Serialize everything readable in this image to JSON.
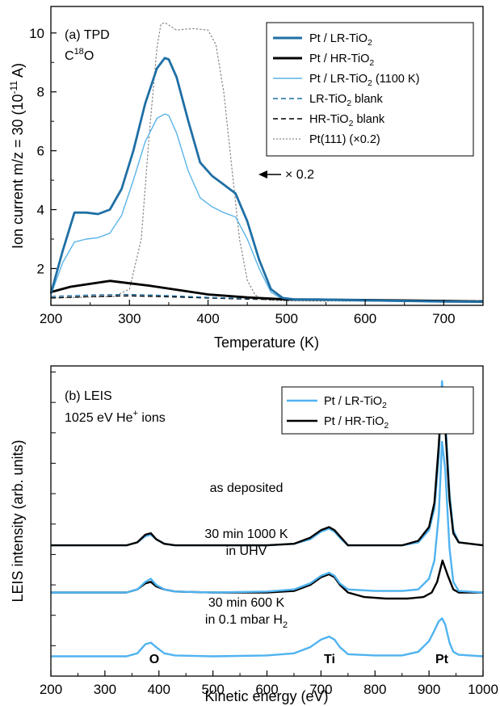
{
  "chart_data": [
    {
      "type": "line",
      "panel_label": "(a) TPD",
      "species": "C18O",
      "xlabel": "Temperature (K)",
      "ylabel": "Ion current m/z = 30 (10-11 A)",
      "xlim": [
        200,
        750
      ],
      "ylim": [
        0.75,
        10.9
      ],
      "x_ticks": [
        200,
        300,
        400,
        500,
        600,
        700
      ],
      "y_ticks": [
        2,
        4,
        6,
        8,
        10
      ],
      "legend_position": "top-right",
      "annotation": "× 0.2",
      "series": [
        {
          "name": "Pt / LR-TiO2",
          "color": "#1f6fa5",
          "style": "solid-thick",
          "x": [
            200,
            215,
            230,
            245,
            260,
            275,
            290,
            305,
            320,
            335,
            345,
            350,
            360,
            375,
            390,
            405,
            420,
            435,
            450,
            465,
            480,
            495,
            510,
            540,
            600,
            650,
            700,
            750
          ],
          "y": [
            1.15,
            2.6,
            3.9,
            3.9,
            3.85,
            4.0,
            4.7,
            6.0,
            7.6,
            8.8,
            9.15,
            9.1,
            8.5,
            7.0,
            5.6,
            5.15,
            4.85,
            4.55,
            3.6,
            2.3,
            1.3,
            1.0,
            0.95,
            0.95,
            0.92,
            0.9,
            0.88,
            0.87
          ]
        },
        {
          "name": "Pt / HR-TiO2",
          "color": "#000000",
          "style": "solid-thick",
          "x": [
            200,
            225,
            250,
            275,
            300,
            325,
            350,
            375,
            400,
            450,
            500,
            600,
            700,
            750
          ],
          "y": [
            1.2,
            1.38,
            1.48,
            1.58,
            1.5,
            1.42,
            1.32,
            1.22,
            1.12,
            1.02,
            0.95,
            0.93,
            0.9,
            0.88
          ]
        },
        {
          "name": "Pt / LR-TiO2 (1100 K)",
          "color": "#5ab4e8",
          "style": "solid",
          "x": [
            200,
            215,
            230,
            245,
            260,
            275,
            290,
            305,
            320,
            335,
            345,
            350,
            360,
            375,
            390,
            405,
            420,
            435,
            450,
            465,
            480,
            495,
            510,
            540,
            600,
            650,
            700,
            750
          ],
          "y": [
            1.1,
            2.2,
            2.9,
            3.0,
            3.05,
            3.2,
            3.8,
            5.0,
            6.3,
            7.1,
            7.25,
            7.2,
            6.6,
            5.3,
            4.4,
            4.1,
            3.9,
            3.75,
            3.0,
            2.0,
            1.2,
            0.95,
            0.92,
            0.92,
            0.9,
            0.88,
            0.87,
            0.86
          ]
        },
        {
          "name": "LR-TiO2 blank",
          "color": "#1f6fa5",
          "style": "dashed",
          "x": [
            200,
            250,
            300,
            350,
            400,
            450,
            500,
            600,
            750
          ],
          "y": [
            1.05,
            1.1,
            1.12,
            1.08,
            1.02,
            0.98,
            0.95,
            0.92,
            0.9
          ]
        },
        {
          "name": "HR-TiO2 blank",
          "color": "#000000",
          "style": "dashed",
          "x": [
            200,
            250,
            300,
            350,
            400,
            450,
            500,
            600,
            750
          ],
          "y": [
            1.0,
            1.05,
            1.07,
            1.04,
            1.0,
            0.96,
            0.94,
            0.92,
            0.9
          ]
        },
        {
          "name": "Pt(111) (×0.2)",
          "color": "#888888",
          "style": "dotted",
          "x": [
            200,
            280,
            300,
            315,
            325,
            335,
            340,
            345,
            360,
            380,
            400,
            410,
            420,
            430,
            440,
            450,
            460,
            470,
            480,
            500,
            750
          ],
          "y": [
            1.0,
            1.05,
            1.3,
            3.0,
            6.5,
            9.5,
            10.3,
            10.35,
            10.1,
            10.15,
            10.1,
            9.6,
            8.0,
            5.5,
            3.0,
            1.6,
            1.1,
            0.95,
            0.92,
            0.9,
            0.88
          ]
        }
      ]
    },
    {
      "type": "line",
      "panel_label": "(b) LEIS",
      "ion_info": "1025 eV He+ ions",
      "xlabel": "Kinetic energy (eV)",
      "ylabel": "LEIS intensity (arb. units)",
      "xlim": [
        200,
        1000
      ],
      "ylim": [
        0,
        10.2
      ],
      "x_ticks": [
        200,
        300,
        400,
        500,
        600,
        700,
        800,
        900,
        1000
      ],
      "legend_position": "top-right",
      "peak_labels": [
        {
          "text": "O",
          "x": 385
        },
        {
          "text": "Ti",
          "x": 715
        },
        {
          "text": "Pt",
          "x": 925
        }
      ],
      "spectrum_labels": [
        {
          "lines": [
            "as deposited"
          ],
          "x": 480,
          "y": 5.0
        },
        {
          "lines": [
            "30 min 1000 K",
            "in UHV"
          ],
          "x": 480,
          "y": 3.35
        },
        {
          "lines": [
            "30 min 600 K",
            "in 0.1 mbar H2"
          ],
          "x": 480,
          "y": 1.45
        }
      ],
      "series": [
        {
          "name": "Pt / LR-TiO2",
          "color": "#4fb3f0",
          "group": "as deposited",
          "x": [
            200,
            340,
            360,
            375,
            385,
            395,
            410,
            430,
            500,
            600,
            650,
            680,
            700,
            715,
            725,
            735,
            750,
            800,
            850,
            880,
            900,
            910,
            918,
            924,
            930,
            938,
            945,
            955,
            1000
          ],
          "y": [
            4.3,
            4.3,
            4.4,
            4.6,
            4.65,
            4.5,
            4.35,
            4.3,
            4.3,
            4.3,
            4.35,
            4.5,
            4.75,
            4.85,
            4.75,
            4.55,
            4.3,
            4.3,
            4.3,
            4.4,
            4.8,
            5.5,
            7.2,
            9.7,
            8.5,
            6.0,
            4.8,
            4.4,
            4.3
          ]
        },
        {
          "name": "Pt / HR-TiO2",
          "color": "#000000",
          "group": "as deposited",
          "x": [
            200,
            340,
            360,
            375,
            385,
            395,
            410,
            430,
            500,
            600,
            650,
            680,
            700,
            715,
            725,
            735,
            750,
            800,
            850,
            880,
            900,
            910,
            918,
            924,
            930,
            938,
            945,
            955,
            1000
          ],
          "y": [
            4.3,
            4.3,
            4.4,
            4.65,
            4.7,
            4.5,
            4.35,
            4.3,
            4.3,
            4.3,
            4.35,
            4.55,
            4.8,
            4.9,
            4.8,
            4.6,
            4.3,
            4.3,
            4.3,
            4.45,
            4.9,
            5.7,
            7.6,
            9.4,
            8.2,
            5.8,
            4.7,
            4.4,
            4.3
          ]
        },
        {
          "name": "Pt / LR-TiO2",
          "color": "#4fb3f0",
          "group": "30 min 1000 K in UHV",
          "x": [
            200,
            340,
            360,
            375,
            385,
            395,
            410,
            430,
            500,
            600,
            650,
            680,
            700,
            715,
            725,
            735,
            750,
            800,
            850,
            880,
            900,
            910,
            918,
            924,
            930,
            938,
            945,
            955,
            1000
          ],
          "y": [
            2.75,
            2.75,
            2.85,
            3.1,
            3.2,
            3.0,
            2.85,
            2.78,
            2.75,
            2.78,
            2.85,
            3.05,
            3.3,
            3.4,
            3.3,
            3.05,
            2.85,
            2.8,
            2.8,
            2.85,
            3.2,
            3.8,
            5.3,
            7.7,
            6.8,
            4.2,
            3.1,
            2.8,
            2.75
          ]
        },
        {
          "name": "Pt / HR-TiO2",
          "color": "#000000",
          "group": "30 min 1000 K in UHV",
          "x": [
            200,
            340,
            360,
            375,
            385,
            395,
            410,
            430,
            500,
            600,
            650,
            680,
            700,
            715,
            725,
            735,
            750,
            780,
            820,
            860,
            890,
            905,
            915,
            925,
            935,
            945,
            955,
            1000
          ],
          "y": [
            2.75,
            2.75,
            2.85,
            3.05,
            3.1,
            2.95,
            2.85,
            2.78,
            2.75,
            2.75,
            2.8,
            3.0,
            3.25,
            3.35,
            3.25,
            3.0,
            2.75,
            2.6,
            2.55,
            2.55,
            2.6,
            2.75,
            3.1,
            3.8,
            3.3,
            2.85,
            2.75,
            2.75
          ]
        },
        {
          "name": "Pt / LR-TiO2",
          "color": "#4fb3f0",
          "group": "30 min 600 K in 0.1 mbar H2",
          "x": [
            200,
            340,
            360,
            375,
            385,
            395,
            410,
            430,
            500,
            600,
            650,
            680,
            700,
            715,
            725,
            735,
            750,
            800,
            850,
            880,
            900,
            910,
            918,
            924,
            930,
            938,
            945,
            955,
            1000
          ],
          "y": [
            0.65,
            0.65,
            0.75,
            1.05,
            1.1,
            0.95,
            0.75,
            0.68,
            0.65,
            0.68,
            0.75,
            0.95,
            1.2,
            1.3,
            1.2,
            0.95,
            0.72,
            0.68,
            0.68,
            0.8,
            1.15,
            1.5,
            1.8,
            1.9,
            1.7,
            1.1,
            0.8,
            0.7,
            0.65
          ]
        }
      ]
    }
  ],
  "legend_a": [
    {
      "text": "Pt / LR-TiO",
      "sub": "2",
      "tail": "",
      "color": "#1f6fa5",
      "dash": "",
      "width": 3
    },
    {
      "text": "Pt / HR-TiO",
      "sub": "2",
      "tail": "",
      "color": "#000000",
      "dash": "",
      "width": 3
    },
    {
      "text": "Pt / LR-TiO",
      "sub": "2",
      "tail": " (1100 K)",
      "color": "#5ab4e8",
      "dash": "",
      "width": 1.5
    },
    {
      "text": "LR-TiO",
      "sub": "2",
      "tail": " blank",
      "color": "#1f6fa5",
      "dash": "6,4",
      "width": 1.5
    },
    {
      "text": "HR-TiO",
      "sub": "2",
      "tail": " blank",
      "color": "#000000",
      "dash": "6,4",
      "width": 1.5
    },
    {
      "text": "Pt(111) (×0.2)",
      "sub": "",
      "tail": "",
      "color": "#888888",
      "dash": "2,2",
      "width": 1.2
    }
  ],
  "legend_b": [
    {
      "text": "Pt / LR-TiO",
      "sub": "2",
      "tail": "",
      "color": "#4fb3f0"
    },
    {
      "text": "Pt / HR-TiO",
      "sub": "2",
      "tail": "",
      "color": "#000000"
    }
  ],
  "texts": {
    "a_panel": "(a) TPD",
    "a_species_c": "C",
    "a_species_sup": "18",
    "a_species_o": "O",
    "a_ylabel_main": "Ion current m/z = 30 (10",
    "a_ylabel_sup": "-11",
    "a_ylabel_tail": " A)",
    "a_xlabel": "Temperature (K)",
    "a_scale_note": "× 0.2",
    "b_panel": "(b) LEIS",
    "b_ion_main": "1025 eV He",
    "b_ion_sup": "+",
    "b_ion_tail": " ions",
    "b_ylabel": "LEIS intensity (arb. units)",
    "b_xlabel": "Kinetic energy (eV)",
    "b_label1": "as deposited",
    "b_label2a": "30 min 1000 K",
    "b_label2b": "in UHV",
    "b_label3a": "30 min 600 K",
    "b_label3b_main": "in 0.1 mbar H",
    "b_label3b_sub": "2",
    "b_peak_o": "O",
    "b_peak_ti": "Ti",
    "b_peak_pt": "Pt"
  }
}
